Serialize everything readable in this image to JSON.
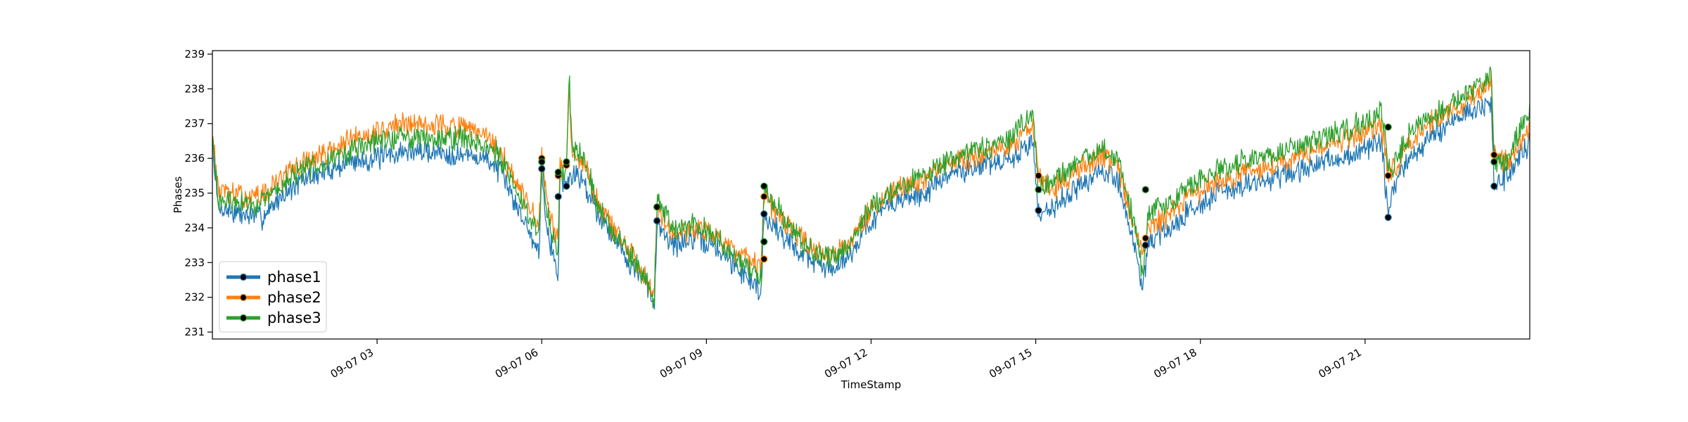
{
  "chart_data": {
    "type": "line",
    "title": "",
    "xlabel": "TimeStamp",
    "ylabel": "Phases",
    "x_range": [
      "09-07 00:00",
      "09-07 24:00"
    ],
    "ylim": [
      230.8,
      239.1
    ],
    "yticks": [
      231,
      232,
      233,
      234,
      235,
      236,
      237,
      238,
      239
    ],
    "ytick_labels": [
      "231",
      "232",
      "233",
      "234",
      "235",
      "236",
      "237",
      "238",
      "239"
    ],
    "xticks_hours": [
      3,
      6,
      9,
      12,
      15,
      18,
      21
    ],
    "xtick_labels": [
      "09-07 03",
      "09-07 06",
      "09-07 09",
      "09-07 12",
      "09-07 15",
      "09-07 18",
      "09-07 21"
    ],
    "grid": false,
    "legend_position": "lower-left",
    "x_unit": "hour of 09-07",
    "series": [
      {
        "name": "phase1",
        "color": "#1f77b4",
        "values": [
          [
            0.0,
            236.5
          ],
          [
            0.1,
            234.6
          ],
          [
            0.5,
            234.4
          ],
          [
            0.9,
            234.3
          ],
          [
            1.3,
            235.0
          ],
          [
            1.7,
            235.4
          ],
          [
            2.0,
            235.6
          ],
          [
            2.5,
            235.9
          ],
          [
            3.0,
            236.0
          ],
          [
            3.5,
            236.2
          ],
          [
            4.0,
            236.2
          ],
          [
            4.5,
            236.1
          ],
          [
            5.0,
            236.0
          ],
          [
            5.2,
            235.7
          ],
          [
            5.5,
            234.8
          ],
          [
            5.8,
            233.8
          ],
          [
            5.95,
            233.3
          ],
          [
            6.0,
            235.7
          ],
          [
            6.1,
            234.0
          ],
          [
            6.3,
            232.6
          ],
          [
            6.33,
            235.5
          ],
          [
            6.45,
            235.2
          ],
          [
            6.5,
            235.4
          ],
          [
            6.6,
            235.6
          ],
          [
            6.8,
            235.2
          ],
          [
            7.0,
            234.5
          ],
          [
            7.3,
            233.8
          ],
          [
            7.6,
            233.0
          ],
          [
            7.9,
            232.4
          ],
          [
            8.05,
            231.6
          ],
          [
            8.1,
            234.2
          ],
          [
            8.4,
            233.5
          ],
          [
            8.8,
            233.7
          ],
          [
            9.2,
            233.4
          ],
          [
            9.6,
            232.8
          ],
          [
            10.0,
            232.2
          ],
          [
            10.05,
            234.4
          ],
          [
            10.2,
            234.1
          ],
          [
            10.5,
            233.6
          ],
          [
            10.8,
            233.2
          ],
          [
            11.2,
            232.8
          ],
          [
            11.6,
            233.2
          ],
          [
            12.0,
            234.2
          ],
          [
            12.5,
            234.8
          ],
          [
            13.0,
            235.0
          ],
          [
            13.5,
            235.6
          ],
          [
            14.0,
            235.8
          ],
          [
            14.5,
            235.9
          ],
          [
            14.95,
            236.5
          ],
          [
            15.05,
            234.4
          ],
          [
            15.3,
            234.6
          ],
          [
            15.7,
            235.1
          ],
          [
            16.2,
            235.6
          ],
          [
            16.5,
            235.4
          ],
          [
            16.8,
            233.4
          ],
          [
            16.95,
            232.3
          ],
          [
            17.05,
            233.6
          ],
          [
            17.4,
            233.9
          ],
          [
            17.8,
            234.5
          ],
          [
            18.3,
            235.0
          ],
          [
            18.8,
            235.2
          ],
          [
            19.3,
            235.4
          ],
          [
            19.8,
            235.6
          ],
          [
            20.3,
            235.9
          ],
          [
            20.8,
            236.1
          ],
          [
            21.3,
            236.5
          ],
          [
            21.42,
            234.3
          ],
          [
            21.5,
            235.1
          ],
          [
            21.8,
            236.0
          ],
          [
            22.2,
            236.6
          ],
          [
            22.6,
            237.1
          ],
          [
            23.0,
            237.4
          ],
          [
            23.3,
            237.6
          ],
          [
            23.35,
            235.2
          ],
          [
            23.6,
            235.5
          ],
          [
            24.0,
            236.5
          ]
        ],
        "markers": [
          [
            6.0,
            235.7
          ],
          [
            6.3,
            234.9
          ],
          [
            6.45,
            235.2
          ],
          [
            8.1,
            234.2
          ],
          [
            10.05,
            234.4
          ],
          [
            10.05,
            233.6
          ],
          [
            15.05,
            234.5
          ],
          [
            17.0,
            233.5
          ],
          [
            21.42,
            234.3
          ],
          [
            23.35,
            235.2
          ]
        ]
      },
      {
        "name": "phase2",
        "color": "#ff7f0e",
        "values": [
          [
            0.0,
            236.8
          ],
          [
            0.1,
            235.1
          ],
          [
            0.5,
            234.9
          ],
          [
            0.9,
            234.9
          ],
          [
            1.3,
            235.5
          ],
          [
            1.7,
            235.9
          ],
          [
            2.0,
            236.1
          ],
          [
            2.5,
            236.5
          ],
          [
            3.0,
            236.8
          ],
          [
            3.5,
            237.0
          ],
          [
            4.0,
            237.0
          ],
          [
            4.5,
            236.9
          ],
          [
            5.0,
            236.6
          ],
          [
            5.2,
            236.3
          ],
          [
            5.5,
            235.4
          ],
          [
            5.8,
            234.5
          ],
          [
            5.95,
            234.0
          ],
          [
            6.0,
            236.1
          ],
          [
            6.1,
            234.6
          ],
          [
            6.3,
            233.5
          ],
          [
            6.33,
            235.7
          ],
          [
            6.45,
            235.9
          ],
          [
            6.5,
            238.2
          ],
          [
            6.55,
            236.2
          ],
          [
            6.8,
            235.8
          ],
          [
            7.0,
            234.8
          ],
          [
            7.3,
            234.0
          ],
          [
            7.6,
            233.3
          ],
          [
            7.9,
            232.6
          ],
          [
            8.05,
            232.2
          ],
          [
            8.1,
            234.6
          ],
          [
            8.4,
            233.8
          ],
          [
            8.8,
            234.0
          ],
          [
            9.2,
            233.8
          ],
          [
            9.6,
            233.2
          ],
          [
            10.0,
            232.8
          ],
          [
            10.05,
            234.9
          ],
          [
            10.2,
            234.6
          ],
          [
            10.5,
            234.0
          ],
          [
            10.8,
            233.6
          ],
          [
            11.2,
            233.2
          ],
          [
            11.6,
            233.6
          ],
          [
            12.0,
            234.5
          ],
          [
            12.5,
            235.1
          ],
          [
            13.0,
            235.4
          ],
          [
            13.5,
            235.9
          ],
          [
            14.0,
            236.1
          ],
          [
            14.5,
            236.3
          ],
          [
            14.95,
            237.0
          ],
          [
            15.05,
            235.5
          ],
          [
            15.3,
            235.1
          ],
          [
            15.7,
            235.6
          ],
          [
            16.2,
            236.1
          ],
          [
            16.5,
            235.8
          ],
          [
            16.8,
            234.0
          ],
          [
            16.95,
            233.1
          ],
          [
            17.05,
            234.0
          ],
          [
            17.4,
            234.3
          ],
          [
            17.8,
            234.9
          ],
          [
            18.3,
            235.3
          ],
          [
            18.8,
            235.6
          ],
          [
            19.3,
            235.8
          ],
          [
            19.8,
            236.1
          ],
          [
            20.3,
            236.4
          ],
          [
            20.8,
            236.6
          ],
          [
            21.3,
            237.0
          ],
          [
            21.42,
            235.5
          ],
          [
            21.5,
            235.6
          ],
          [
            21.8,
            236.5
          ],
          [
            22.2,
            237.0
          ],
          [
            22.6,
            237.4
          ],
          [
            23.0,
            237.8
          ],
          [
            23.3,
            238.2
          ],
          [
            23.35,
            236.1
          ],
          [
            23.6,
            235.9
          ],
          [
            24.0,
            236.9
          ]
        ],
        "markers": [
          [
            6.0,
            236.0
          ],
          [
            6.3,
            235.5
          ],
          [
            6.45,
            235.8
          ],
          [
            8.1,
            234.6
          ],
          [
            10.05,
            234.9
          ],
          [
            10.05,
            233.1
          ],
          [
            15.05,
            235.5
          ],
          [
            17.0,
            233.7
          ],
          [
            21.42,
            235.5
          ],
          [
            23.35,
            236.1
          ]
        ]
      },
      {
        "name": "phase3",
        "color": "#2ca02c",
        "values": [
          [
            0.0,
            236.6
          ],
          [
            0.1,
            234.8
          ],
          [
            0.5,
            234.7
          ],
          [
            0.9,
            234.7
          ],
          [
            1.3,
            235.3
          ],
          [
            1.7,
            235.7
          ],
          [
            2.0,
            235.9
          ],
          [
            2.5,
            236.2
          ],
          [
            3.0,
            236.5
          ],
          [
            3.5,
            236.6
          ],
          [
            4.0,
            236.6
          ],
          [
            4.5,
            236.6
          ],
          [
            5.0,
            236.4
          ],
          [
            5.2,
            236.1
          ],
          [
            5.5,
            235.2
          ],
          [
            5.8,
            234.3
          ],
          [
            5.95,
            233.8
          ],
          [
            6.0,
            235.9
          ],
          [
            6.1,
            234.4
          ],
          [
            6.3,
            233.1
          ],
          [
            6.33,
            235.6
          ],
          [
            6.45,
            235.8
          ],
          [
            6.5,
            238.4
          ],
          [
            6.55,
            236.4
          ],
          [
            6.8,
            236.0
          ],
          [
            7.0,
            234.7
          ],
          [
            7.3,
            233.9
          ],
          [
            7.6,
            233.2
          ],
          [
            7.9,
            232.5
          ],
          [
            8.05,
            231.9
          ],
          [
            8.1,
            234.9
          ],
          [
            8.4,
            233.9
          ],
          [
            8.8,
            234.1
          ],
          [
            9.2,
            233.7
          ],
          [
            9.6,
            233.0
          ],
          [
            10.0,
            232.5
          ],
          [
            10.05,
            235.2
          ],
          [
            10.2,
            234.8
          ],
          [
            10.5,
            234.1
          ],
          [
            10.8,
            233.5
          ],
          [
            11.2,
            233.1
          ],
          [
            11.6,
            233.5
          ],
          [
            12.0,
            234.6
          ],
          [
            12.5,
            235.2
          ],
          [
            13.0,
            235.5
          ],
          [
            13.5,
            236.0
          ],
          [
            14.0,
            236.3
          ],
          [
            14.5,
            236.5
          ],
          [
            14.95,
            237.3
          ],
          [
            15.05,
            235.1
          ],
          [
            15.3,
            235.3
          ],
          [
            15.7,
            235.8
          ],
          [
            16.2,
            236.3
          ],
          [
            16.5,
            236.0
          ],
          [
            16.8,
            234.1
          ],
          [
            16.95,
            232.6
          ],
          [
            17.05,
            234.5
          ],
          [
            17.4,
            234.6
          ],
          [
            17.8,
            235.2
          ],
          [
            18.3,
            235.7
          ],
          [
            18.8,
            235.9
          ],
          [
            19.3,
            236.1
          ],
          [
            19.8,
            236.4
          ],
          [
            20.3,
            236.7
          ],
          [
            20.8,
            236.9
          ],
          [
            21.3,
            237.4
          ],
          [
            21.42,
            235.8
          ],
          [
            21.5,
            235.7
          ],
          [
            21.8,
            236.7
          ],
          [
            22.2,
            237.2
          ],
          [
            22.6,
            237.6
          ],
          [
            23.0,
            238.0
          ],
          [
            23.3,
            238.4
          ],
          [
            23.35,
            235.9
          ],
          [
            23.6,
            236.0
          ],
          [
            24.0,
            237.4
          ]
        ],
        "markers": [
          [
            6.0,
            235.9
          ],
          [
            6.3,
            235.6
          ],
          [
            6.45,
            235.9
          ],
          [
            8.1,
            234.6
          ],
          [
            10.05,
            235.2
          ],
          [
            10.05,
            233.6
          ],
          [
            15.05,
            235.1
          ],
          [
            17.0,
            235.1
          ],
          [
            21.42,
            236.9
          ],
          [
            23.35,
            235.9
          ]
        ]
      }
    ]
  }
}
